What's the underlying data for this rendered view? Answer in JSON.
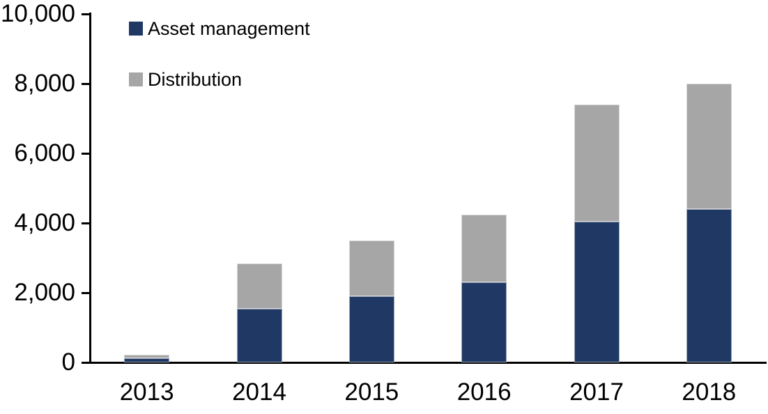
{
  "chart_data": {
    "type": "bar",
    "stacked": true,
    "title": "",
    "xlabel": "",
    "ylabel": "",
    "categories": [
      "2013",
      "2014",
      "2015",
      "2016",
      "2017",
      "2018"
    ],
    "series": [
      {
        "name": "Asset management",
        "color": "#1F3864",
        "values": [
          120,
          1550,
          1900,
          2300,
          4050,
          4400
        ]
      },
      {
        "name": "Distribution",
        "color": "#A6A6A6",
        "values": [
          100,
          1300,
          1600,
          1950,
          3350,
          3600
        ]
      }
    ],
    "stack_totals": [
      220,
      2850,
      3500,
      4250,
      7400,
      8000
    ],
    "ylim": [
      0,
      10000
    ],
    "yticks": [
      0,
      2000,
      4000,
      6000,
      8000,
      10000
    ],
    "ytick_labels": [
      "0",
      "2,000",
      "4,000",
      "6,000",
      "8,000",
      "10,000"
    ],
    "grid": false,
    "legend_position": "top-left"
  },
  "colors": {
    "axis": "#000000",
    "text": "#000000",
    "background": "#FFFFFF",
    "asset_management": "#1F3864",
    "distribution": "#A6A6A6"
  }
}
